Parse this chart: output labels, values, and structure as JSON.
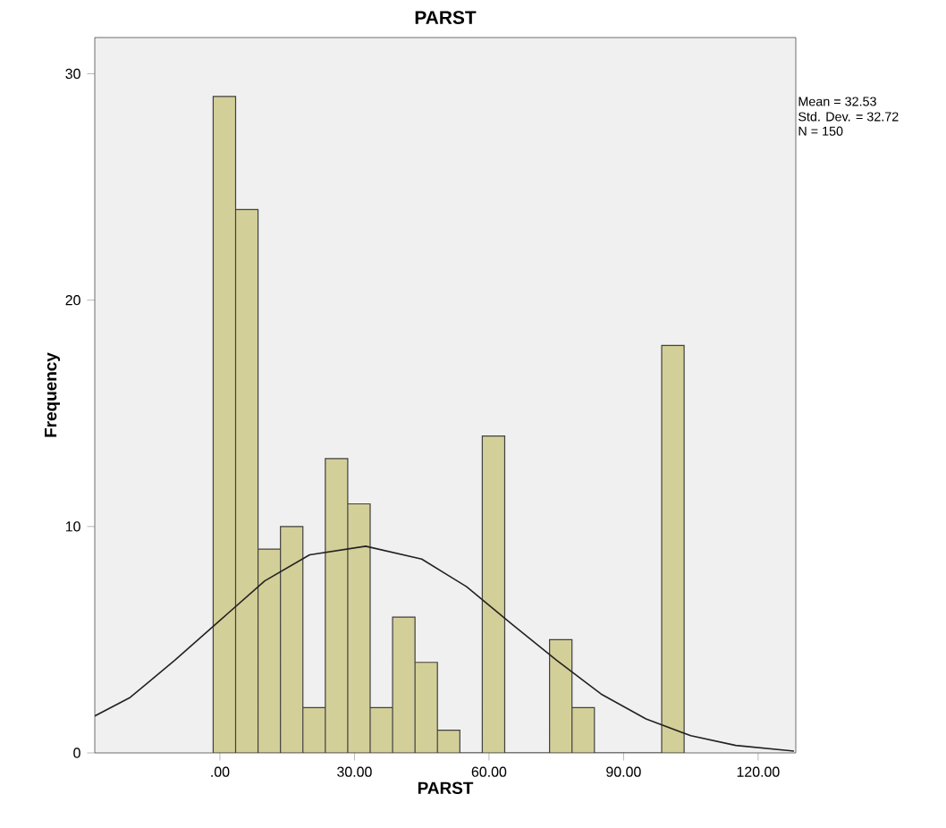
{
  "chart_data": {
    "type": "histogram",
    "title": "PARST",
    "xlabel": "PARST",
    "ylabel": "Frequency",
    "bins": [
      -1.5,
      3.5,
      8.5,
      13.5,
      18.5,
      23.5,
      28.5,
      33.5,
      38.5,
      43.5,
      48.5,
      53.5,
      58.5,
      63.5,
      68.5,
      73.5,
      78.5,
      83.5,
      88.5,
      93.5,
      98.5,
      103.5
    ],
    "values": [
      29,
      24,
      9,
      10,
      2,
      13,
      11,
      2,
      6,
      4,
      1,
      0,
      14,
      0,
      0,
      5,
      2,
      0,
      0,
      0,
      18
    ],
    "color": "#d3cf98",
    "series": [
      {
        "type": "line",
        "color": "#222222",
        "x": [
          -27.9,
          -20,
          -10,
          0,
          10,
          20,
          32.5,
          45,
          55,
          65,
          75,
          85,
          95,
          105,
          115,
          128
        ],
        "values": [
          1.63,
          2.45,
          4.1,
          5.85,
          7.6,
          8.75,
          9.13,
          8.56,
          7.34,
          5.7,
          4.1,
          2.6,
          1.5,
          0.76,
          0.33,
          0.08
        ]
      }
    ],
    "xlim": [
      -27.9,
      128.4
    ],
    "ylim": [
      0,
      31.6
    ],
    "xticks": [
      {
        "value": 0,
        "label": ".00"
      },
      {
        "value": 30,
        "label": "30.00"
      },
      {
        "value": 60,
        "label": "60.00"
      },
      {
        "value": 90,
        "label": "90.00"
      },
      {
        "value": 120,
        "label": "120.00"
      }
    ],
    "yticks": [
      0,
      10,
      20,
      30
    ],
    "annotations": [
      "Mean = 32.53",
      "Std. Dev. = 32.72",
      "N = 150"
    ]
  }
}
